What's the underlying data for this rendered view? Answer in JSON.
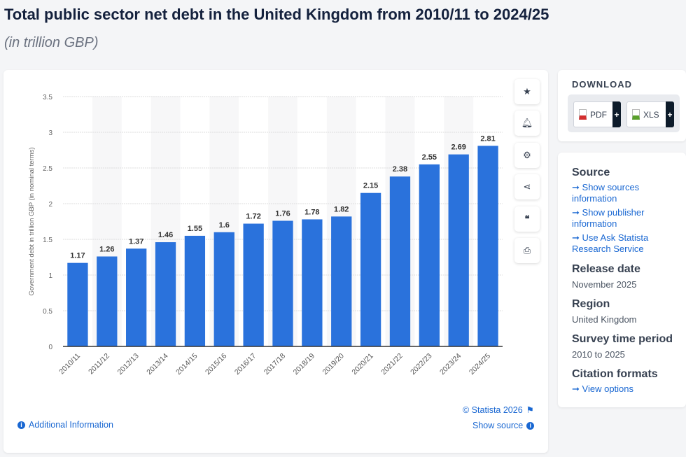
{
  "title": "Total public sector net debt in the United Kingdom from 2010/11 to 2024/25",
  "subtitle": "(in trillion GBP)",
  "chart_data": {
    "type": "bar",
    "categories": [
      "2010/11",
      "2011/12",
      "2012/13",
      "2013/14",
      "2014/15",
      "2015/16",
      "2016/17",
      "2017/18",
      "2018/19",
      "2019/20",
      "2020/21",
      "2021/22",
      "2022/23",
      "2023/24",
      "2024/25"
    ],
    "values": [
      1.17,
      1.26,
      1.37,
      1.46,
      1.55,
      1.6,
      1.72,
      1.76,
      1.78,
      1.82,
      2.15,
      2.38,
      2.55,
      2.69,
      2.81
    ],
    "ylabel": "Government debt in trillion GBP (in nominal terms)",
    "xlabel": "",
    "ylim": [
      0,
      3.5
    ],
    "yticks": [
      0,
      0.5,
      1,
      1.5,
      2,
      2.5,
      3,
      3.5
    ],
    "grid": true,
    "bar_color": "#2a72dc"
  },
  "toolbar": {
    "icons": [
      "star-icon",
      "bell-icon",
      "gear-icon",
      "share-icon",
      "quote-icon",
      "print-icon"
    ]
  },
  "footer": {
    "copyright": "© Statista 2026",
    "additional_info": "Additional Information",
    "show_source": "Show source"
  },
  "download": {
    "heading": "DOWNLOAD",
    "pdf": "PDF",
    "xls": "XLS",
    "plus": "+"
  },
  "meta": {
    "source_heading": "Source",
    "source_links": [
      "Show sources information",
      "Show publisher information",
      "Use Ask Statista Research Service"
    ],
    "release_heading": "Release date",
    "release_value": "November 2025",
    "region_heading": "Region",
    "region_value": "United Kingdom",
    "period_heading": "Survey time period",
    "period_value": "2010 to 2025",
    "citation_heading": "Citation formats",
    "citation_link": "View options",
    "arrow": "➞"
  }
}
